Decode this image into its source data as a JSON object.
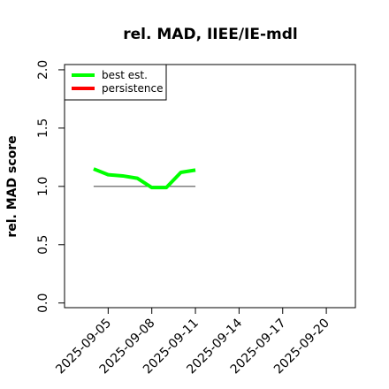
{
  "chart_data": {
    "type": "line",
    "title": "rel. MAD, IIEE/IE-mdl",
    "y_label": "rel. MAD score",
    "x": [
      "2025-09-04",
      "2025-09-05",
      "2025-09-06",
      "2025-09-07",
      "2025-09-08",
      "2025-09-09",
      "2025-09-10",
      "2025-09-11"
    ],
    "series": [
      {
        "name": "best est.",
        "color": "#00ff00",
        "values": [
          1.15,
          1.1,
          1.09,
          1.07,
          0.99,
          0.99,
          1.12,
          1.14
        ]
      },
      {
        "name": "persistence",
        "color": "#ff0000",
        "values": [
          null,
          null,
          null,
          null,
          null,
          null,
          null,
          null
        ]
      }
    ],
    "reference_line": {
      "value": 1,
      "color": "#555555"
    },
    "xlim": [
      "2025-09-02",
      "2025-09-22"
    ],
    "xticks": [
      "2025-09-05",
      "2025-09-08",
      "2025-09-11",
      "2025-09-14",
      "2025-09-17",
      "2025-09-20"
    ],
    "ylim": [
      -0.04,
      2.045
    ],
    "yticks": [
      {
        "value": 0,
        "label": "0.0"
      },
      {
        "value": 0.5,
        "label": "0.5"
      },
      {
        "value": 1,
        "label": "1.0"
      },
      {
        "value": 1.5,
        "label": "1.5"
      },
      {
        "value": 2,
        "label": "2.0"
      }
    ],
    "legend": "top-left"
  }
}
